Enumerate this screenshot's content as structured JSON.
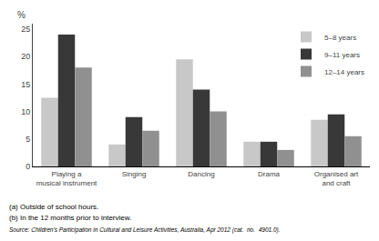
{
  "chart_data": {
    "type": "bar",
    "ylabel": "%",
    "categories": [
      "Playing a\nmusical instrument",
      "Singing",
      "Dancing",
      "Drama",
      "Organised art\nand craft"
    ],
    "series": [
      {
        "name": "5–8 years",
        "color": "#c8c8c8",
        "values": [
          12.5,
          4.0,
          19.5,
          4.5,
          8.5
        ]
      },
      {
        "name": "9–11 years",
        "color": "#383838",
        "values": [
          24.0,
          9.0,
          14.0,
          4.5,
          9.5
        ]
      },
      {
        "name": "12–14 years",
        "color": "#909090",
        "values": [
          18.0,
          6.5,
          10.0,
          3.0,
          5.5
        ]
      }
    ],
    "ylim": [
      0,
      26
    ],
    "yticks": [
      0,
      5,
      10,
      15,
      20,
      25
    ],
    "grid": false,
    "legend": "upper right",
    "annotations": [
      "(a) Outside of school hours.",
      "(b) In the 12 months prior to interview.",
      "Source: Children's Participation in Cultural and Leisure Activities, Australia, Apr 2012 (cat.  no.  4901.0)."
    ]
  }
}
